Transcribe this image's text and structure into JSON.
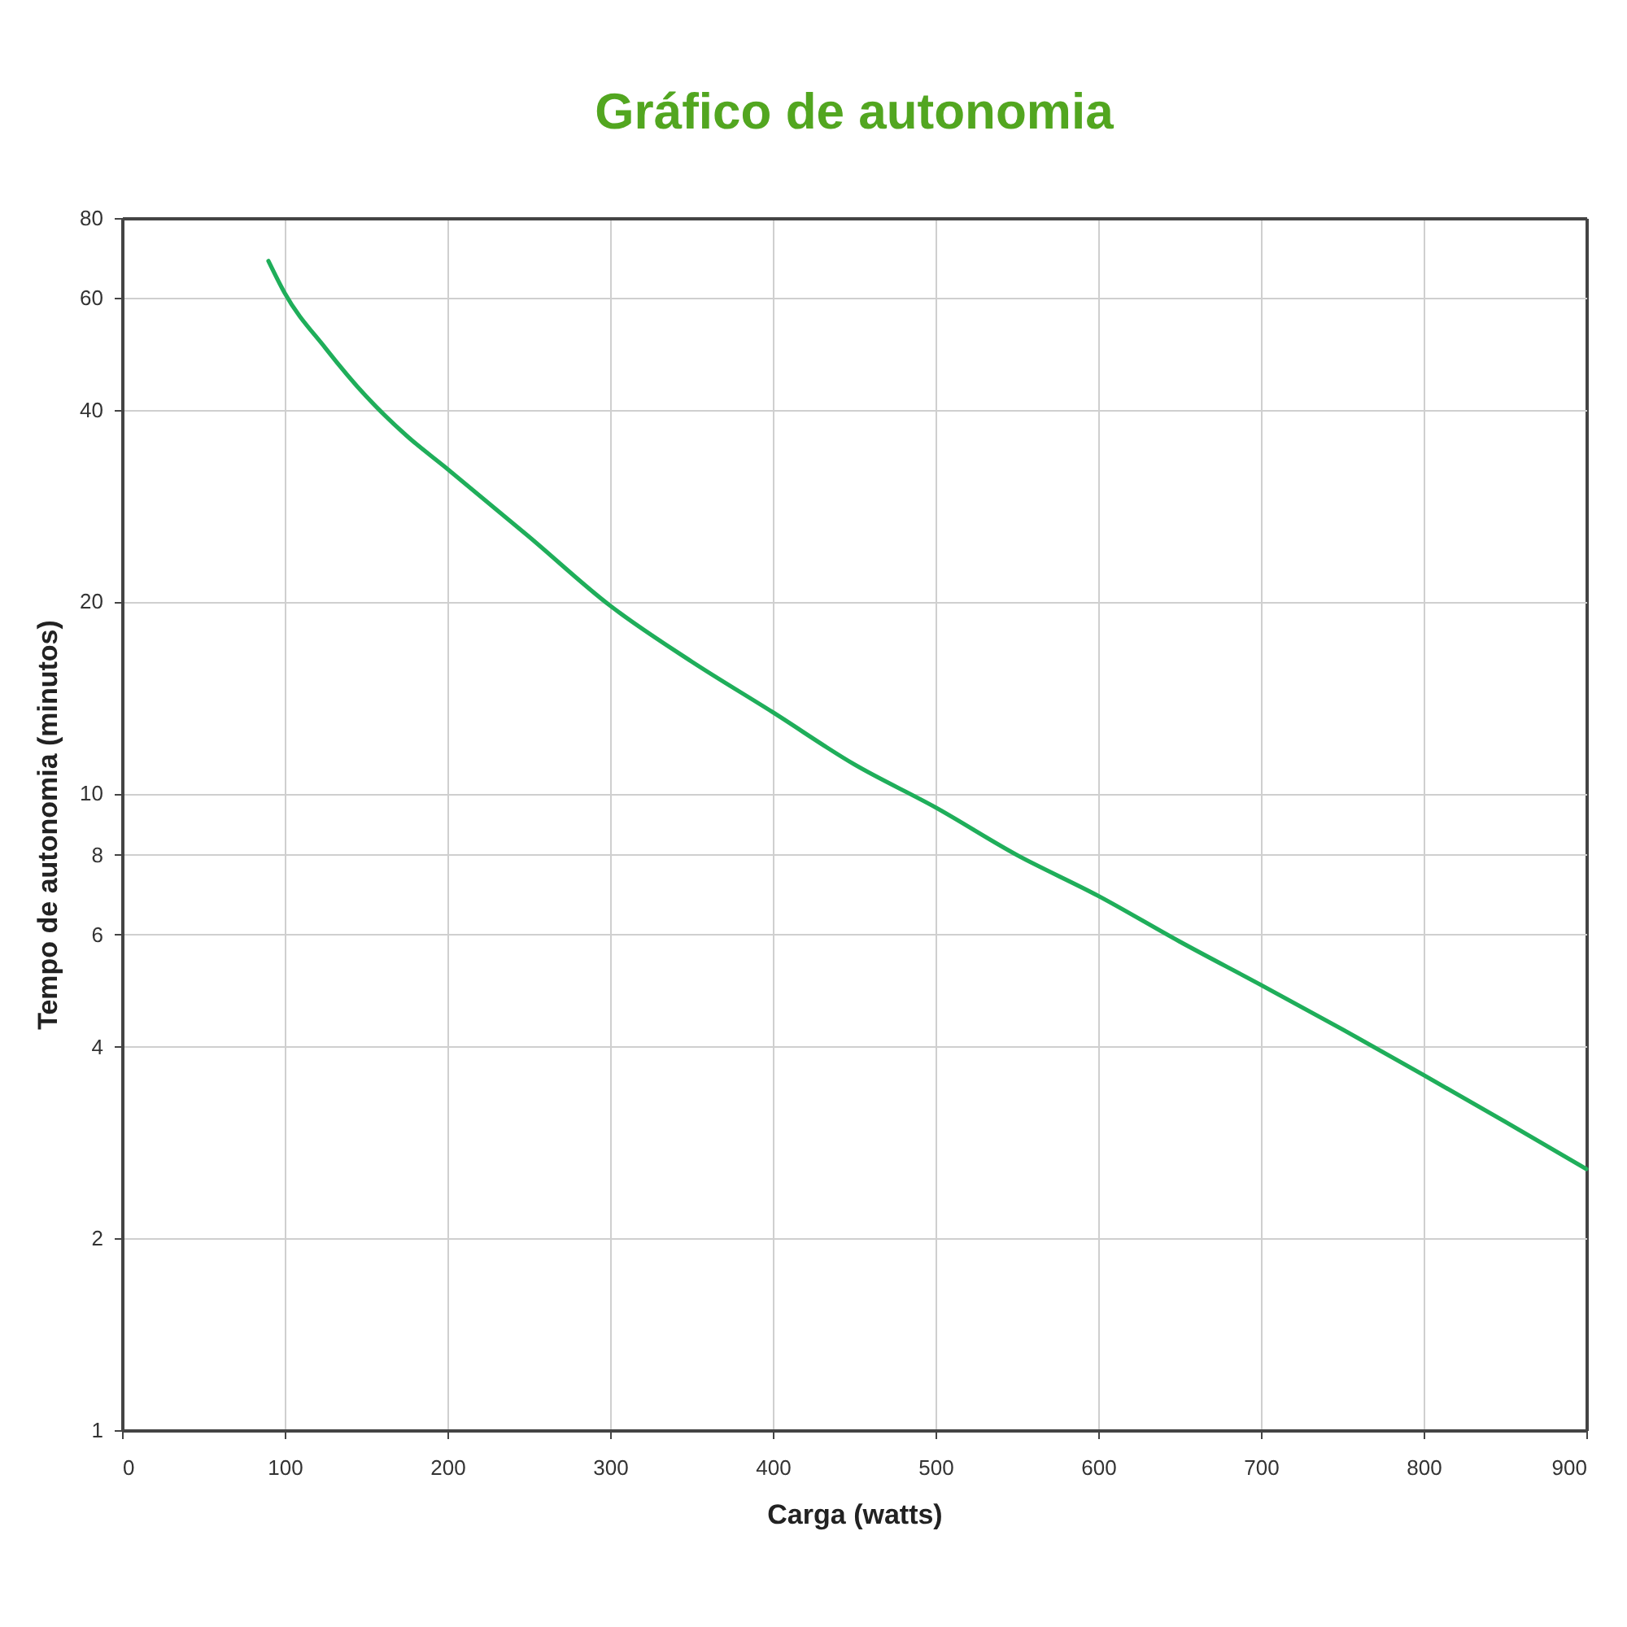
{
  "chart_data": {
    "type": "line",
    "title": "Gráfico de autonomia",
    "xlabel": "Carga (watts)",
    "ylabel": "Tempo de autonomia (minutos)",
    "x": [
      90,
      100,
      125,
      150,
      175,
      200,
      250,
      300,
      350,
      400,
      450,
      500,
      550,
      600,
      650,
      700,
      750,
      800,
      850,
      900
    ],
    "series": [
      {
        "color": "#1fae5a",
        "values": [
          68.5,
          61,
          50,
          42,
          36.4,
          32.3,
          25.3,
          19.7,
          16.1,
          13.4,
          11.1,
          9.5,
          8.0,
          6.9,
          5.85,
          5.0,
          4.26,
          3.61,
          3.05,
          2.57
        ]
      }
    ],
    "xlim": [
      0,
      900
    ],
    "xticks": [
      0,
      100,
      200,
      300,
      400,
      500,
      600,
      700,
      800,
      900
    ],
    "ylim": [
      1,
      80
    ],
    "yticks": [
      1,
      2,
      4,
      6,
      8,
      10,
      20,
      40,
      60,
      80
    ],
    "log": "y",
    "grid": true,
    "marker": "none",
    "line_style": "solid"
  }
}
